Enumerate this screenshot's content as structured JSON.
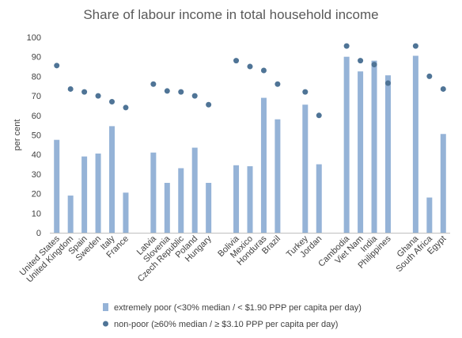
{
  "chart_data": {
    "type": "bar",
    "title": "Share of labour income in total household income",
    "xlabel": "",
    "ylabel": "per cent",
    "ylim": [
      0,
      100
    ],
    "yticks": [
      0,
      10,
      20,
      30,
      40,
      50,
      60,
      70,
      80,
      90,
      100
    ],
    "grid": false,
    "legend_position": "bottom",
    "categories": [
      "United States",
      "United Kingdom",
      "Spain",
      "Sweden",
      "Italy",
      "France",
      "",
      "Latvia",
      "Slovenia",
      "Czech Republic",
      "Poland",
      "Hungary",
      "",
      "Bolivia",
      "Mexico",
      "Honduras",
      "Brazil",
      "",
      "Turkey",
      "Jordan",
      "",
      "Cambodia",
      "Viet Nam",
      "India",
      "Philippines",
      "",
      "Ghana",
      "South Africa",
      "Egypt"
    ],
    "series": [
      {
        "name": "extremely poor (<30% median / < $1.90 PPP per capita per day)",
        "type": "bar",
        "color": "#95b3d7",
        "values": [
          47.5,
          19,
          39,
          40.5,
          54.5,
          20.5,
          null,
          41,
          25.5,
          33,
          43.5,
          25.5,
          null,
          34.5,
          34,
          69,
          58,
          null,
          65.5,
          35,
          null,
          90,
          82.5,
          88,
          80.5,
          null,
          90.5,
          18,
          50.5
        ]
      },
      {
        "name": "non-poor (≥60% median / ≥ $3.10 PPP per capita per day)",
        "type": "scatter",
        "color": "#4f7496",
        "values": [
          85.5,
          73.5,
          72,
          70,
          67,
          64,
          null,
          76,
          72.5,
          72,
          70,
          65.5,
          null,
          88,
          85,
          83,
          76,
          null,
          72,
          60,
          null,
          95.5,
          88,
          86,
          76.5,
          null,
          95.5,
          80,
          73.5
        ]
      }
    ]
  }
}
